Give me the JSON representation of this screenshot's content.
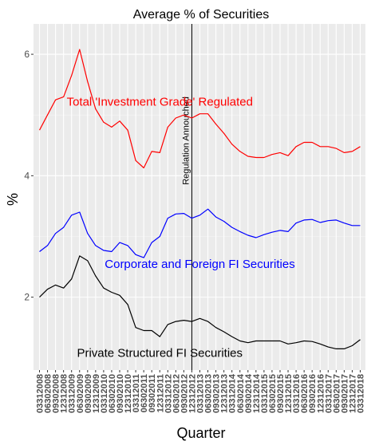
{
  "chart_data": {
    "type": "line",
    "title": "Average % of Securities",
    "xlabel": "Quarter",
    "ylabel": "%",
    "ylim": [
      0.8,
      6.5
    ],
    "yticks": [
      2,
      4,
      6
    ],
    "grid": true,
    "legend": "none",
    "categories": [
      "03312008",
      "06302008",
      "09302008",
      "12312008",
      "03312009",
      "06302009",
      "09302009",
      "12312009",
      "03312010",
      "06302010",
      "09302010",
      "12312010",
      "03312011",
      "06302011",
      "09302011",
      "12312011",
      "03312012",
      "06302012",
      "09302012",
      "12312012",
      "03312013",
      "06302013",
      "09302013",
      "12312013",
      "03312014",
      "06302014",
      "09302014",
      "12312014",
      "03312015",
      "06302015",
      "09302015",
      "12312015",
      "03312016",
      "06302016",
      "09302016",
      "12312016",
      "03312017",
      "06302017",
      "09302017",
      "12312017",
      "03312018"
    ],
    "event": {
      "category": "12312012",
      "label": "Regulation Annouched"
    },
    "series": [
      {
        "name": "Total 'Investment Grade' Regulated",
        "color": "#ff0000",
        "label_at": {
          "x": "12312011",
          "y": 5.22
        },
        "values": [
          4.75,
          5.0,
          5.25,
          5.3,
          5.65,
          6.08,
          5.55,
          5.1,
          4.88,
          4.8,
          4.9,
          4.75,
          4.25,
          4.13,
          4.4,
          4.38,
          4.8,
          4.95,
          5.0,
          4.95,
          5.02,
          5.02,
          4.85,
          4.7,
          4.52,
          4.4,
          4.32,
          4.3,
          4.3,
          4.35,
          4.38,
          4.33,
          4.48,
          4.55,
          4.55,
          4.48,
          4.48,
          4.45,
          4.38,
          4.4,
          4.48
        ]
      },
      {
        "name": "Corporate and Foreign FI Securities",
        "color": "#0000ff",
        "label_at": {
          "x": "03312013",
          "y": 2.55
        },
        "values": [
          2.75,
          2.85,
          3.05,
          3.15,
          3.35,
          3.4,
          3.05,
          2.85,
          2.77,
          2.75,
          2.9,
          2.85,
          2.7,
          2.65,
          2.9,
          3.0,
          3.3,
          3.37,
          3.38,
          3.3,
          3.35,
          3.45,
          3.32,
          3.25,
          3.15,
          3.08,
          3.02,
          2.98,
          3.03,
          3.07,
          3.1,
          3.08,
          3.22,
          3.27,
          3.28,
          3.23,
          3.26,
          3.27,
          3.22,
          3.18,
          3.18
        ]
      },
      {
        "name": "Private Structured FI Securities",
        "color": "#000000",
        "label_at": {
          "x": "12312011",
          "y": 1.08
        },
        "values": [
          2.0,
          2.13,
          2.2,
          2.15,
          2.3,
          2.68,
          2.6,
          2.35,
          2.15,
          2.08,
          2.03,
          1.88,
          1.5,
          1.45,
          1.45,
          1.35,
          1.55,
          1.6,
          1.62,
          1.6,
          1.65,
          1.6,
          1.5,
          1.43,
          1.35,
          1.28,
          1.25,
          1.28,
          1.28,
          1.28,
          1.28,
          1.23,
          1.25,
          1.28,
          1.27,
          1.23,
          1.18,
          1.15,
          1.15,
          1.2,
          1.3
        ]
      }
    ]
  }
}
